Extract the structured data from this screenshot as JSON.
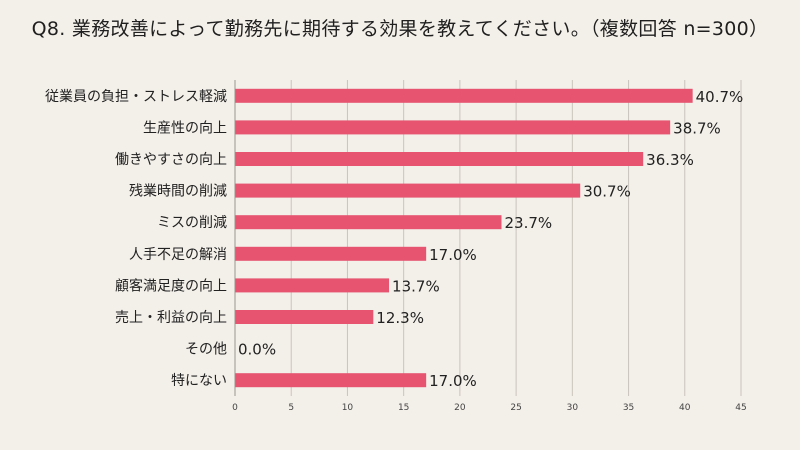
{
  "chart_data": {
    "type": "bar",
    "orientation": "horizontal",
    "title": "Q8. 業務改善によって勤務先に期待する効果を教えてください。（複数回答 n=300）",
    "categories": [
      "従業員の負担・ストレス軽減",
      "生産性の向上",
      "働きやすさの向上",
      "残業時間の削減",
      "ミスの削減",
      "人手不足の解消",
      "顧客満足度の向上",
      "売上・利益の向上",
      "その他",
      "特にない"
    ],
    "values": [
      40.7,
      38.7,
      36.3,
      30.7,
      23.7,
      17.0,
      13.7,
      12.3,
      0.0,
      17.0
    ],
    "value_labels": [
      "40.7%",
      "38.7%",
      "36.3%",
      "30.7%",
      "23.7%",
      "17.0%",
      "13.7%",
      "12.3%",
      "0.0%",
      "17.0%"
    ],
    "xlim": [
      0,
      45
    ],
    "xticks": [
      0,
      5,
      10,
      15,
      20,
      25,
      30,
      35,
      40,
      45
    ],
    "grid": true,
    "legend": "none",
    "bar_color": "#e6546f",
    "grid_color": "#c9c4bd",
    "background": "#f3efe9"
  }
}
